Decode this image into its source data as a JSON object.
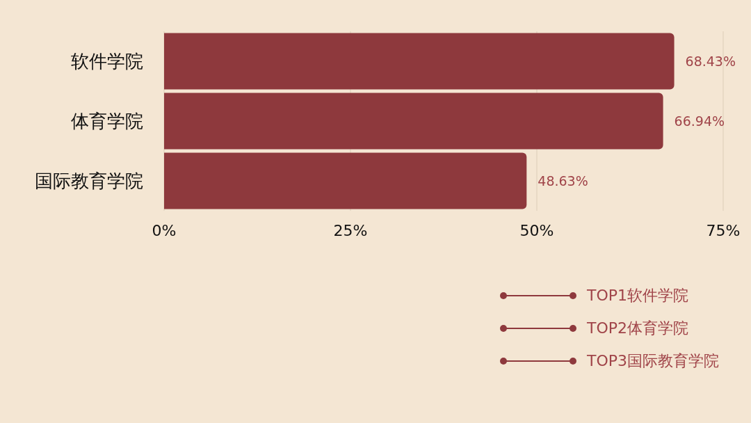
{
  "chart_data": {
    "type": "bar",
    "orientation": "horizontal",
    "categories": [
      "软件学院",
      "体育学院",
      "国际教育学院"
    ],
    "values": [
      68.43,
      66.94,
      48.63
    ],
    "value_labels": [
      "68.43%",
      "66.94%",
      "48.63%"
    ],
    "color": "#8e393d",
    "xlim": [
      0,
      75
    ],
    "xticks": [
      {
        "value": 0,
        "label": "0%"
      },
      {
        "value": 25,
        "label": "25%"
      },
      {
        "value": 50,
        "label": "50%"
      },
      {
        "value": 75,
        "label": "75%"
      }
    ],
    "grid": "x",
    "annotations": [
      "TOP1软件学院",
      "TOP2体育学院",
      "TOP3国际教育学院"
    ]
  }
}
